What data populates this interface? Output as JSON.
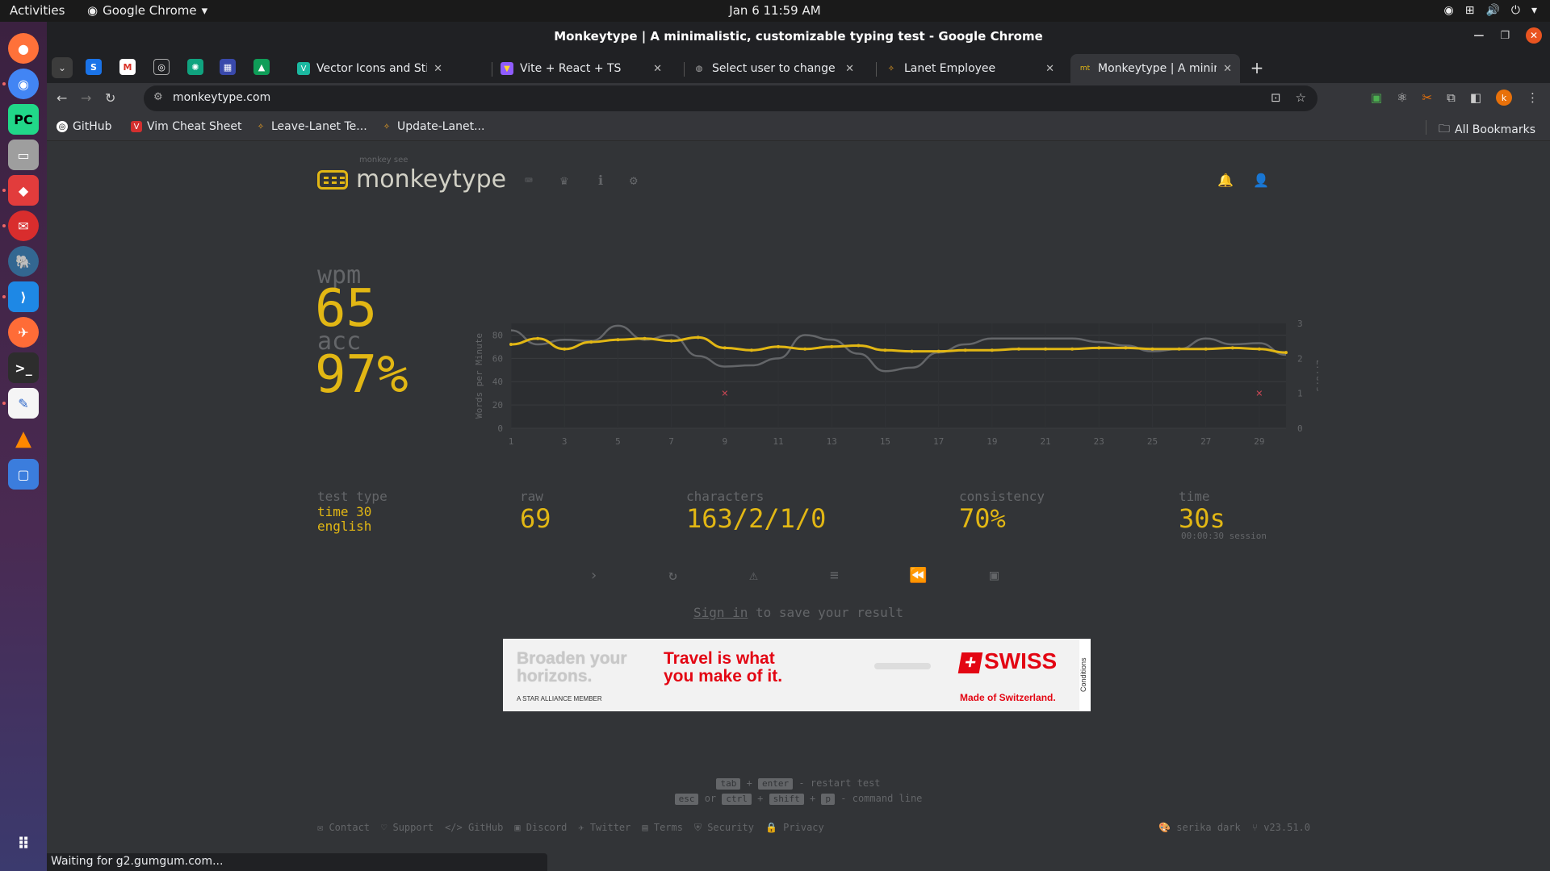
{
  "os": {
    "activities": "Activities",
    "app_name": "Google Chrome",
    "clock": "Jan 6  11:59 AM"
  },
  "window": {
    "title": "Monkeytype | A minimalistic, customizable typing test - Google Chrome"
  },
  "tabs": [
    {
      "label": "Vector Icons and Stickers",
      "active": false
    },
    {
      "label": "Vite + React + TS",
      "active": false
    },
    {
      "label": "Select user to change | D",
      "active": false
    },
    {
      "label": "Lanet Employee",
      "active": false
    },
    {
      "label": "Monkeytype | A minimali",
      "active": true
    }
  ],
  "omnibox": {
    "url": "monkeytype.com"
  },
  "bookmarks": [
    {
      "label": "GitHub"
    },
    {
      "label": "Vim Cheat Sheet"
    },
    {
      "label": "Leave-Lanet Te..."
    },
    {
      "label": "Update-Lanet..."
    }
  ],
  "all_bookmarks": "All Bookmarks",
  "monkeytype": {
    "tagline": "monkey see",
    "wordmark": "monkeytype",
    "wpm_label": "wpm",
    "wpm": "65",
    "acc_label": "acc",
    "acc": "97%",
    "test_type_label": "test type",
    "test_type_line1": "time 30",
    "test_type_line2": "english",
    "raw_label": "raw",
    "raw": "69",
    "characters_label": "characters",
    "characters": "163/2/1/0",
    "consistency_label": "consistency",
    "consistency": "70%",
    "time_label": "time",
    "time": "30s",
    "session": "00:00:30 session",
    "signin_link": "Sign in",
    "signin_rest": " to save your result"
  },
  "chart_data": {
    "type": "line",
    "ylabel": "Words per Minute",
    "y2label": "Errors",
    "x": [
      1,
      2,
      3,
      4,
      5,
      6,
      7,
      8,
      9,
      10,
      11,
      12,
      13,
      14,
      15,
      16,
      17,
      18,
      19,
      20,
      21,
      22,
      23,
      24,
      25,
      26,
      27,
      28,
      29,
      30
    ],
    "x_ticks": [
      1,
      3,
      5,
      7,
      9,
      11,
      13,
      15,
      17,
      19,
      21,
      23,
      25,
      27,
      29
    ],
    "ylim": [
      0,
      90
    ],
    "y_ticks": [
      0,
      20,
      40,
      60,
      80
    ],
    "y2lim": [
      0,
      3
    ],
    "y2_ticks": [
      0,
      1,
      2,
      3
    ],
    "series": [
      {
        "values": [
          72,
          77,
          68,
          74,
          76,
          77,
          75,
          78,
          69,
          67,
          70,
          68,
          70,
          71,
          67,
          66,
          66,
          67,
          67,
          68,
          68,
          68,
          69,
          69,
          68,
          68,
          68,
          69,
          68,
          65
        ],
        "color": "#e2b714"
      },
      {
        "values": [
          84,
          72,
          76,
          75,
          88,
          76,
          80,
          62,
          53,
          54,
          60,
          80,
          76,
          64,
          49,
          52,
          65,
          72,
          77,
          77,
          77,
          77,
          74,
          71,
          66,
          68,
          77,
          72,
          73,
          63
        ],
        "color": "#646669"
      },
      {
        "x": [
          9,
          29
        ],
        "values": [
          1,
          1
        ],
        "color": "#ca4754"
      }
    ]
  },
  "footer": {
    "hint1_key1": "tab",
    "hint1_plus": "+",
    "hint1_key2": "enter",
    "hint1_text": " - restart test",
    "hint2_key1": "esc",
    "hint2_or": " or ",
    "hint2_key2": "ctrl",
    "hint2_plus1": "+",
    "hint2_key3": "shift",
    "hint2_plus2": "+",
    "hint2_key4": "p",
    "hint2_text": " - command line",
    "links": [
      "Contact",
      "Support",
      "GitHub",
      "Discord",
      "Twitter",
      "Terms",
      "Security",
      "Privacy"
    ],
    "theme": "serika dark",
    "version": "v23.51.0"
  },
  "ad": {
    "line1a": "Broaden your",
    "line1b": "horizons.",
    "line2a": "Travel is what",
    "line2b": "you make of it.",
    "alliance": "A STAR ALLIANCE MEMBER",
    "brand": "SWISS",
    "made": "Made of Switzerland.",
    "cond": "Conditions"
  },
  "status": "Waiting for g2.gumgum.com..."
}
